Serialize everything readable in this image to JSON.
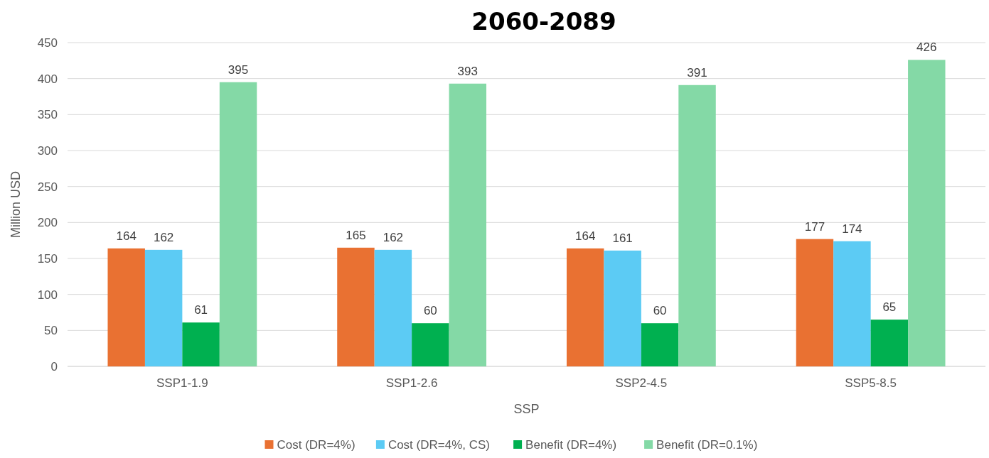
{
  "chart_data": {
    "type": "bar",
    "title": "2060-2089",
    "xlabel": "SSP",
    "ylabel": "Million USD",
    "categories": [
      "SSP1-1.9",
      "SSP1-2.6",
      "SSP2-4.5",
      "SSP5-8.5"
    ],
    "series": [
      {
        "name": "Cost (DR=4%)",
        "color": "#e97132",
        "values": [
          164,
          165,
          164,
          177
        ]
      },
      {
        "name": "Cost (DR=4%, CS)",
        "color": "#5ccbf4",
        "values": [
          162,
          162,
          161,
          174
        ]
      },
      {
        "name": "Benefit (DR=4%)",
        "color": "#00b050",
        "values": [
          61,
          60,
          60,
          65
        ]
      },
      {
        "name": "Benefit (DR=0.1%)",
        "color": "#84d9a6",
        "values": [
          395,
          393,
          391,
          426
        ]
      }
    ],
    "ylim": [
      0,
      450
    ],
    "yticks": [
      0,
      50,
      100,
      150,
      200,
      250,
      300,
      350,
      400,
      450
    ],
    "grid": "y",
    "legend": "bottom",
    "data_labels": true
  }
}
